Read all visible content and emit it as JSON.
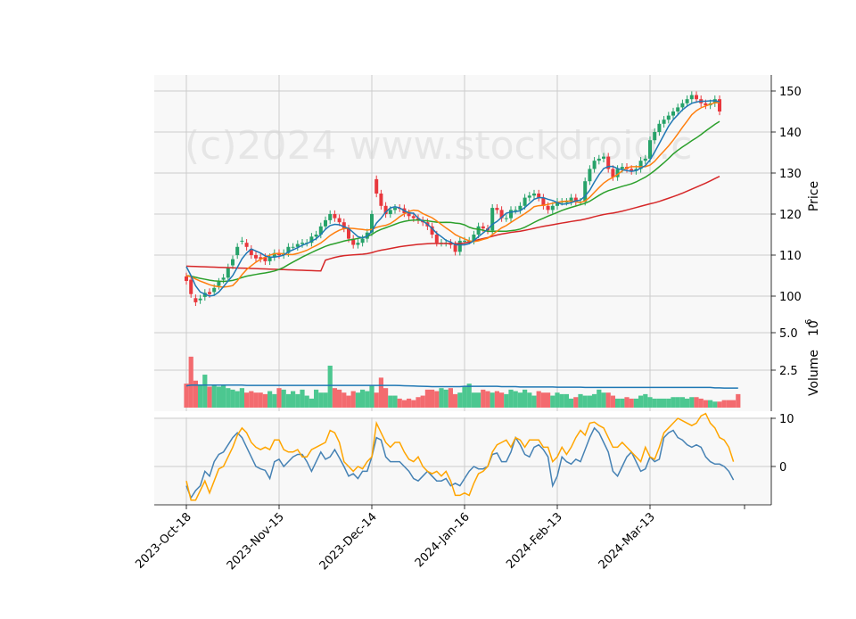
{
  "watermark": "(c)2024 www.stockdroid.c",
  "colors": {
    "up": "#26a269",
    "down": "#e8383d",
    "upVol": "#4cc790",
    "downVol": "#f36b6f",
    "ma5": "#1f77b4",
    "ma10": "#ff7f0e",
    "ma20": "#2ca02c",
    "ma60": "#d62728",
    "volMa": "#1f77b4",
    "osc1": "#4682b4",
    "osc2": "#ffa500",
    "grid": "#cccccc",
    "panelBg": "#f8f8f8"
  },
  "chart_data": [
    {
      "type": "candlestick",
      "ylabel": "Price",
      "ylim": [
        95,
        152
      ],
      "yticks": [
        "100",
        "110",
        "120",
        "130",
        "140",
        "150"
      ],
      "x_ticks": [
        "2023-Oct-18",
        "2023-Nov-15",
        "2023-Dec-14",
        "2024-Jan-16",
        "2024-Feb-13",
        "2024-Mar-13"
      ],
      "x_tick_index": [
        0,
        20,
        40,
        60,
        80,
        100
      ],
      "close": [
        103.7,
        100.5,
        98.5,
        99.4,
        100.8,
        100.5,
        102,
        103.5,
        104.5,
        107,
        109,
        112,
        113.5,
        112,
        110,
        109.2,
        109.1,
        108.5,
        109.5,
        110.5,
        110,
        110.5,
        112,
        112,
        112.7,
        113,
        113,
        114.5,
        115,
        117,
        118.5,
        120,
        119,
        118,
        116.5,
        114,
        112.5,
        113,
        114,
        115.5,
        120,
        125,
        122,
        120,
        121,
        121.5,
        121.4,
        120.2,
        119.5,
        119,
        118.5,
        118,
        117,
        115,
        113,
        113,
        113,
        112.5,
        110.8,
        113.5,
        113.5,
        113.5,
        115,
        117,
        116.5,
        116,
        121.5,
        121,
        119,
        119,
        121,
        121,
        122,
        124,
        124.5,
        125,
        124,
        122,
        121,
        122,
        123,
        123,
        123,
        124,
        123,
        123,
        128,
        131,
        133,
        133.5,
        134,
        131,
        129,
        131,
        131.5,
        131,
        130.5,
        131,
        133,
        133.5,
        138,
        140,
        142,
        143,
        144,
        145,
        146,
        147,
        148,
        149,
        148,
        147,
        146.5,
        147,
        148,
        145
      ],
      "open": [
        104.8,
        104,
        99.5,
        99,
        99.8,
        101,
        101,
        102.5,
        104,
        104.5,
        107.5,
        110,
        113.5,
        113,
        111.5,
        110,
        109.5,
        109.5,
        108.5,
        109.5,
        110.5,
        110,
        110.5,
        112,
        112,
        112.7,
        113,
        113,
        114.5,
        115,
        117,
        118.5,
        120,
        119,
        118,
        116.5,
        114,
        112.5,
        113,
        114,
        115.5,
        128.5,
        125,
        122,
        120,
        121,
        121.5,
        121.4,
        120.2,
        119.5,
        119,
        118.5,
        118,
        117,
        115,
        113,
        113,
        113,
        112.5,
        110.8,
        113.5,
        113.5,
        113.5,
        115,
        117,
        116.5,
        116,
        121.5,
        121,
        119,
        119,
        121,
        121,
        122,
        124,
        124.5,
        125,
        124,
        122,
        121,
        122,
        123,
        123,
        123,
        124,
        123,
        123,
        128,
        131,
        133,
        133.5,
        134,
        131,
        129,
        131,
        131.5,
        131,
        130.5,
        131,
        133,
        133.5,
        138,
        140,
        142,
        143,
        144,
        145,
        146,
        147,
        148,
        149,
        148,
        147,
        146.5,
        147,
        148
      ],
      "ma5": [
        107.2,
        105,
        102.5,
        101,
        100.5,
        100,
        100.2,
        101,
        102.3,
        103.7,
        105,
        107,
        109.1,
        110.5,
        111.5,
        111,
        110.5,
        109.8,
        109.5,
        109.5,
        109.7,
        110,
        110.8,
        111.3,
        111.8,
        112.4,
        112.8,
        113.4,
        114,
        115,
        116.3,
        117.2,
        117.5,
        117.4,
        116.9,
        116.5,
        115.5,
        114.5,
        114.2,
        114.6,
        115.8,
        117.8,
        119,
        120.5,
        121.5,
        121.8,
        121.5,
        120.8,
        120.3,
        120.2,
        119,
        118.3,
        117.5,
        116.5,
        115.3,
        114.5,
        113.6,
        113.2,
        112.5,
        112.5,
        112.5,
        112.8,
        113.5,
        114.5,
        115.4,
        116.3,
        117.5,
        118.2,
        119.2,
        120.2,
        120.5,
        120.6,
        120.8,
        121.6,
        122.6,
        123.6,
        124,
        124,
        123.6,
        123.3,
        122.8,
        122.4,
        122.5,
        122.8,
        123.2,
        123.4,
        124.4,
        125.8,
        127.8,
        129.6,
        131.1,
        131.6,
        131.6,
        131.1,
        130.8,
        130.6,
        130.4,
        130.6,
        131.2,
        131.8,
        133.2,
        135.1,
        137.2,
        139.3,
        141.4,
        143,
        144.2,
        145.4,
        146.3,
        147,
        147.3,
        147.5,
        147.5,
        147.6,
        147.6,
        147.4
      ]
    },
    {
      "type": "bar",
      "ylabel": "Volume",
      "yunit": "10^6",
      "ylim": [
        0,
        6
      ],
      "yticks": [
        "2.5",
        "5.0"
      ],
      "values": [
        1.6,
        3.4,
        1.8,
        1.5,
        2.2,
        1.4,
        1.5,
        1.4,
        1.5,
        1.3,
        1.2,
        1.1,
        1.3,
        1.0,
        1.1,
        1.0,
        1.0,
        0.9,
        1.1,
        0.9,
        1.3,
        1.2,
        0.9,
        1.1,
        0.9,
        1.2,
        0.8,
        0.6,
        1.2,
        1.0,
        1.0,
        2.8,
        1.3,
        1.2,
        1.0,
        0.8,
        1.1,
        1.0,
        1.2,
        1.1,
        1.5,
        1.0,
        2.0,
        1.3,
        0.8,
        0.8,
        0.6,
        0.5,
        0.6,
        0.5,
        0.7,
        0.8,
        1.2,
        1.2,
        1.1,
        1.3,
        1.2,
        1.3,
        0.9,
        1.0,
        1.4,
        1.6,
        1.0,
        1.0,
        1.2,
        1.1,
        1.0,
        1.1,
        1.0,
        0.9,
        1.2,
        1.1,
        1.0,
        1.2,
        1.0,
        0.8,
        1.1,
        1.0,
        1.0,
        0.8,
        1.0,
        0.9,
        0.9,
        0.6,
        0.7,
        0.9,
        0.8,
        0.8,
        0.9,
        1.2,
        1.0,
        1.0,
        0.8,
        0.6,
        0.6,
        0.7,
        0.6,
        0.6,
        0.8,
        0.9,
        0.7,
        0.6,
        0.6,
        0.6,
        0.6,
        0.7,
        0.7,
        0.7,
        0.6,
        0.7,
        0.7,
        0.6,
        0.5,
        0.5,
        0.4,
        0.4,
        0.5,
        0.5,
        0.5,
        0.9
      ],
      "ma": [
        1.45,
        1.5,
        1.5,
        1.5,
        1.5,
        1.5,
        1.5,
        1.5,
        1.5,
        1.5,
        1.5,
        1.5,
        1.5,
        1.48,
        1.48,
        1.48,
        1.48,
        1.48,
        1.48,
        1.48,
        1.48,
        1.48,
        1.48,
        1.48,
        1.48,
        1.48,
        1.48,
        1.48,
        1.48,
        1.48,
        1.48,
        1.48,
        1.48,
        1.48,
        1.48,
        1.48,
        1.48,
        1.48,
        1.48,
        1.48,
        1.48,
        1.48,
        1.48,
        1.48,
        1.48,
        1.48,
        1.47,
        1.46,
        1.45,
        1.44,
        1.43,
        1.42,
        1.41,
        1.4,
        1.4,
        1.4,
        1.4,
        1.4,
        1.4,
        1.4,
        1.42,
        1.42,
        1.42,
        1.42,
        1.42,
        1.42,
        1.42,
        1.42,
        1.4,
        1.4,
        1.4,
        1.4,
        1.38,
        1.38,
        1.38,
        1.38,
        1.38,
        1.38,
        1.38,
        1.38,
        1.36,
        1.36,
        1.36,
        1.36,
        1.36,
        1.36,
        1.35,
        1.35,
        1.35,
        1.35,
        1.35,
        1.35,
        1.35,
        1.35,
        1.35,
        1.35,
        1.35,
        1.35,
        1.35,
        1.35,
        1.35,
        1.35,
        1.35,
        1.35,
        1.35,
        1.35,
        1.35,
        1.35,
        1.35,
        1.35,
        1.35,
        1.35,
        1.35,
        1.35,
        1.32,
        1.32,
        1.3,
        1.3,
        1.3,
        1.3
      ]
    },
    {
      "type": "line",
      "ylim": [
        -8,
        11.5
      ],
      "yticks": [
        "0",
        "10"
      ],
      "series": [
        {
          "values": [
            -4,
            -6.5,
            -5,
            -4,
            -1,
            -2,
            1,
            2.5,
            3,
            4.5,
            6,
            7,
            6,
            4,
            2,
            0,
            -0.5,
            -0.8,
            -2.5,
            1,
            1.5,
            0,
            1,
            2,
            2.5,
            2.5,
            1,
            -1,
            1,
            3,
            1.5,
            2,
            3.5,
            1.8,
            0,
            -2,
            -1.5,
            -2.5,
            -1,
            -1,
            2,
            6,
            5.5,
            2,
            1,
            1,
            1,
            0,
            -1,
            -2.5,
            -3,
            -2,
            -1,
            -2,
            -3,
            -3,
            -2.5,
            -4,
            -3.5,
            -4,
            -2.5,
            -1,
            0,
            -0.5,
            -0.5,
            0,
            2.5,
            2.8,
            1,
            1,
            3,
            6,
            4.5,
            2.5,
            2,
            4,
            4.5,
            3.5,
            2,
            -4,
            -2,
            2,
            1,
            0.5,
            1.5,
            1,
            3.5,
            6,
            8,
            7,
            5,
            3,
            -1,
            -2,
            0,
            2,
            3,
            1,
            -1,
            -0.5,
            2,
            1,
            1.5,
            6,
            7,
            7.5,
            6,
            5.5,
            4.5,
            4,
            4.5,
            4,
            2,
            1,
            0.5,
            0.5,
            0,
            -1,
            -2.8
          ]
        },
        {
          "values": [
            -3,
            -7,
            -7,
            -5,
            -3,
            -5.5,
            -3,
            -0.5,
            0,
            2,
            4,
            6.5,
            8,
            7,
            5,
            4,
            3.5,
            4,
            3.5,
            5.5,
            5.5,
            3.5,
            3,
            3,
            3.5,
            2,
            2,
            3.5,
            4,
            4.5,
            5,
            7.5,
            7,
            5,
            1,
            0,
            -1,
            0,
            -0.5,
            1,
            2,
            9,
            7,
            5,
            4,
            5,
            5,
            3,
            1.5,
            1,
            2,
            0,
            -1,
            -1.5,
            -1,
            -2,
            -1,
            -3,
            -6,
            -6,
            -5.5,
            -6,
            -3.5,
            -1.5,
            -1,
            0,
            3,
            4.5,
            5,
            5.5,
            4,
            6,
            5.5,
            4,
            5.5,
            5.5,
            5.5,
            4,
            4,
            1,
            2,
            4,
            2.5,
            4,
            6,
            7.5,
            6.5,
            9,
            9.2,
            8.5,
            8,
            6,
            4,
            4,
            5,
            4,
            3,
            2,
            1,
            4,
            2,
            1.5,
            4,
            7,
            8,
            9,
            10,
            9.5,
            9,
            8.5,
            9,
            10.5,
            11,
            9,
            8,
            6,
            5.5,
            4,
            1
          ]
        }
      ]
    }
  ]
}
